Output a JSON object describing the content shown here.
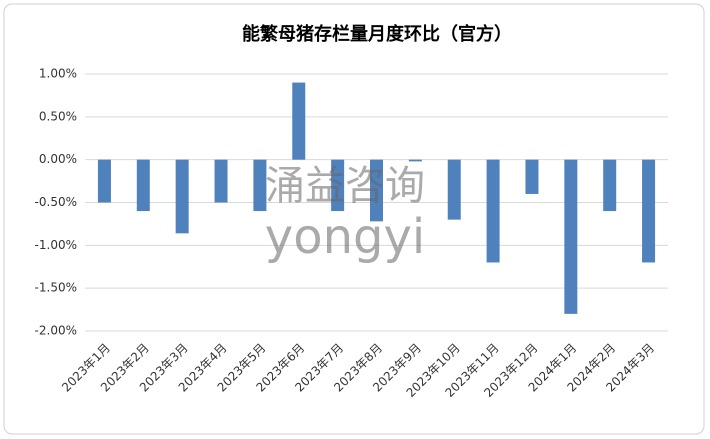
{
  "chart_data": {
    "type": "bar",
    "title": "能繁母猪存栏量月度环比（官方）",
    "watermark": [
      "涌益咨询",
      "yongyi"
    ],
    "categories": [
      "2023年1月",
      "2023年2月",
      "2023年3月",
      "2023年4月",
      "2023年5月",
      "2023年6月",
      "2023年7月",
      "2023年8月",
      "2023年9月",
      "2023年10月",
      "2023年11月",
      "2023年12月",
      "2024年1月",
      "2024年2月",
      "2024年3月"
    ],
    "values": [
      -0.5,
      -0.6,
      -0.86,
      -0.5,
      -0.6,
      0.9,
      -0.6,
      -0.72,
      -0.02,
      -0.7,
      -1.2,
      -0.4,
      -1.8,
      -0.6,
      -1.2
    ],
    "color": "#4f81bd",
    "ylim": [
      -2,
      1
    ],
    "yticks": [
      {
        "value": -2,
        "label": "-2.00%"
      },
      {
        "value": -1.5,
        "label": "-1.50%"
      },
      {
        "value": -1,
        "label": "-1.00%"
      },
      {
        "value": -0.5,
        "label": "-0.50%"
      },
      {
        "value": 0,
        "label": "0.00%"
      },
      {
        "value": 0.5,
        "label": "0.50%"
      },
      {
        "value": 1,
        "label": "1.00%"
      }
    ],
    "grid": true
  }
}
